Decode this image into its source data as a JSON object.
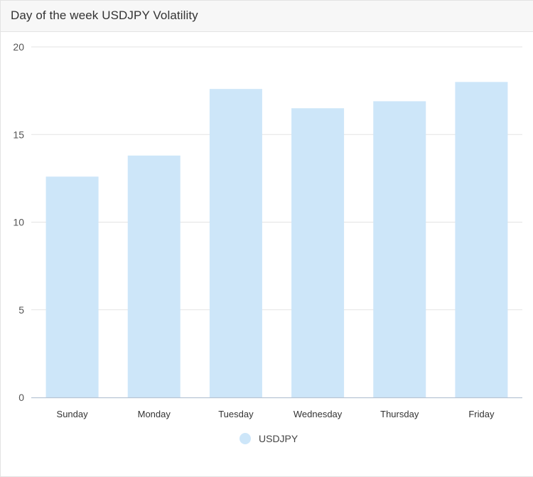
{
  "card": {
    "title": "Day of the week USDJPY Volatility"
  },
  "colors": {
    "bar": "#cde6f9",
    "grid": "#e3e3e3",
    "axis": "#b8c4d4"
  },
  "chart_data": {
    "type": "bar",
    "title": "Day of the week USDJPY Volatility",
    "xlabel": "",
    "ylabel": "",
    "categories": [
      "Sunday",
      "Monday",
      "Tuesday",
      "Wednesday",
      "Thursday",
      "Friday"
    ],
    "series": [
      {
        "name": "USDJPY",
        "values": [
          12.6,
          13.8,
          17.6,
          16.5,
          16.9,
          18.0
        ]
      }
    ],
    "ylim": [
      0,
      20
    ],
    "yticks": [
      0,
      5,
      10,
      15,
      20
    ],
    "grid": true,
    "legend_position": "bottom-center"
  }
}
